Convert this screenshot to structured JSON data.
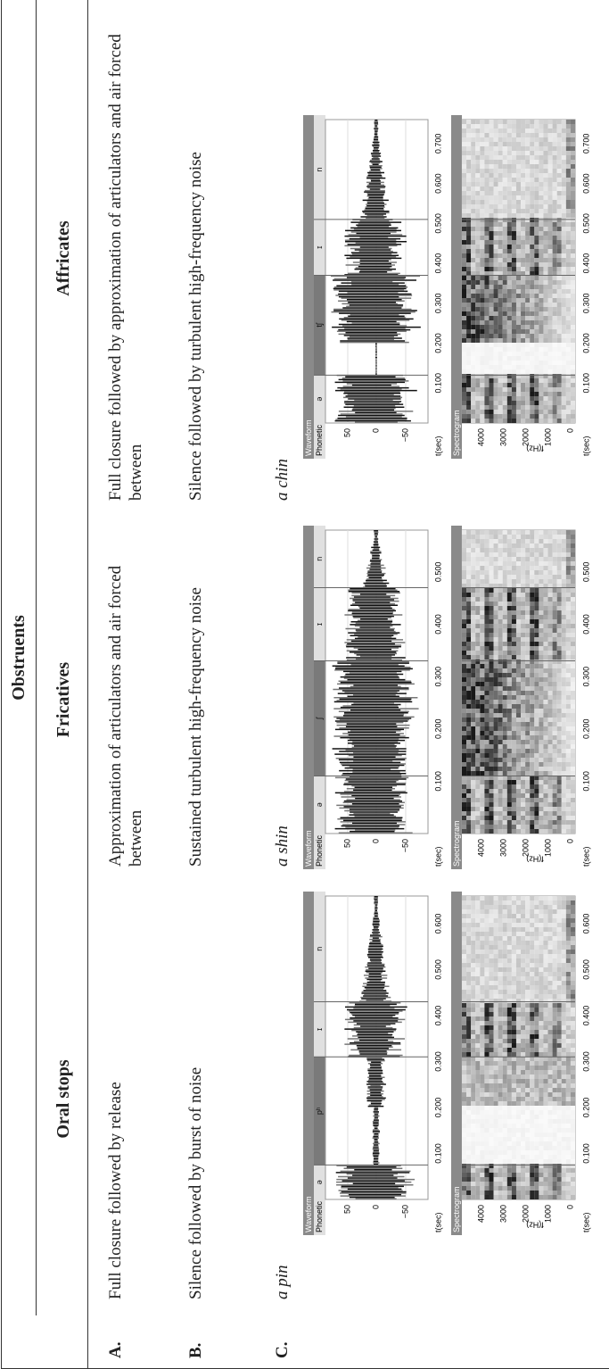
{
  "header": "Obstruents",
  "columns": [
    "Oral stops",
    "Fricatives",
    "Affricates"
  ],
  "rows": [
    {
      "label": "A.",
      "cells": [
        "Full closure followed by release",
        "Approximation of articulators and air forced between",
        "Full closure followed by approximation of articulators and air forced between"
      ]
    },
    {
      "label": "B.",
      "cells": [
        "Silence followed by burst of noise",
        "Sustained turbulent high-frequency noise",
        "Silence followed by turbulent high-frequency noise"
      ]
    },
    {
      "label": "C.",
      "cells": [
        "a pin",
        "a shin",
        "a chin"
      ]
    }
  ],
  "panels": [
    {
      "waveform_title": "Waveform",
      "phonetic_label": "Phonetic",
      "segments": [
        "ə",
        "pʰ",
        "ɪ",
        "n"
      ],
      "amplitude_ticks": [
        "50",
        "0",
        "−50"
      ],
      "time_label": "t(sec)",
      "time_ticks": [
        "0.100",
        "0.200",
        "0.300",
        "0.400",
        "0.500",
        "0.600"
      ],
      "spectrogram_title": "Spectrogram",
      "freq_ticks": [
        "4000",
        "3000",
        "2000",
        "1000",
        "0"
      ],
      "freq_label": "f(Hz)"
    },
    {
      "waveform_title": "Waveform",
      "phonetic_label": "Phonetic",
      "segments": [
        "ə",
        "ʃ",
        "ɪ",
        "n"
      ],
      "amplitude_ticks": [
        "50",
        "0",
        "−50"
      ],
      "time_label": "t(sec)",
      "time_ticks": [
        "0.100",
        "0.200",
        "0.300",
        "0.400",
        "0.500"
      ],
      "spectrogram_title": "Spectrogram",
      "freq_ticks": [
        "4000",
        "3000",
        "2000",
        "1000",
        "0"
      ],
      "freq_label": "f(Hz)"
    },
    {
      "waveform_title": "Waveform",
      "phonetic_label": "Phonetic",
      "segments": [
        "ə",
        "tʃ",
        "ɪ",
        "n"
      ],
      "amplitude_ticks": [
        "50",
        "0",
        "−50"
      ],
      "time_label": "t(sec)",
      "time_ticks": [
        "0.100",
        "0.200",
        "0.300",
        "0.400",
        "0.500",
        "0.600",
        "0.700"
      ],
      "spectrogram_title": "Spectrogram",
      "freq_ticks": [
        "4000",
        "3000",
        "2000",
        "1000",
        "0"
      ],
      "freq_label": "f(Hz)"
    }
  ]
}
